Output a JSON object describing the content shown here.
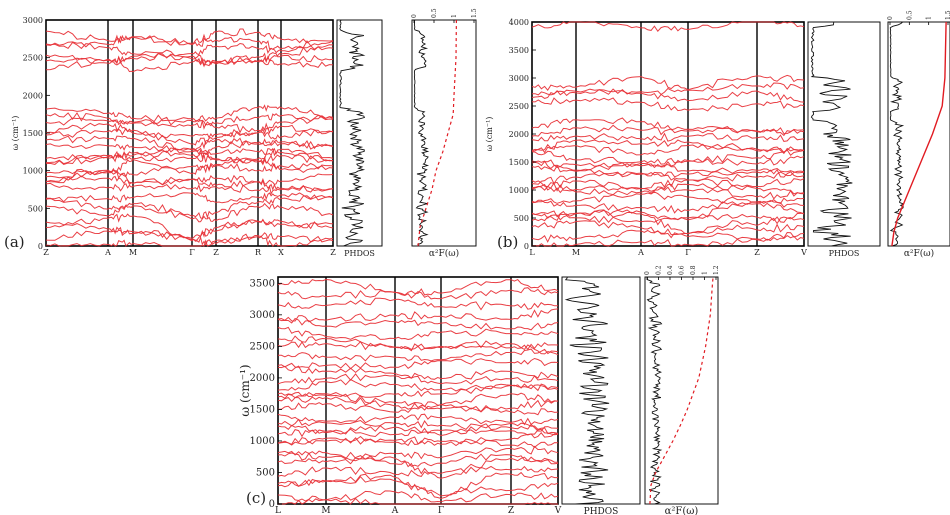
{
  "chart_data": [
    {
      "id": "a",
      "type": "line",
      "panel_label": "(a)",
      "ylabel": "ω (cm⁻¹)",
      "ylim": [
        0,
        3000
      ],
      "yticks": [
        0,
        500,
        1000,
        1500,
        2000,
        2500,
        3000
      ],
      "kpath": [
        "Z",
        "A",
        "M",
        "Γ",
        "Z",
        "R",
        "X",
        "Z"
      ],
      "band_levels": [
        60,
        150,
        250,
        330,
        450,
        560,
        650,
        760,
        830,
        910,
        1000,
        1060,
        1120,
        1180,
        1240,
        1300,
        1380,
        1450,
        1540,
        1620,
        1700,
        1760,
        2400,
        2470,
        2540,
        2620,
        2700,
        2790
      ],
      "dos_label": "PHDOS",
      "eli_label": "α²F(ω)",
      "lambda_ticks": [
        "0",
        "0.5",
        "1",
        "1.5"
      ],
      "lambda_curve": [
        [
          0,
          0.1
        ],
        [
          250,
          0.15
        ],
        [
          500,
          0.3
        ],
        [
          750,
          0.45
        ],
        [
          1000,
          0.55
        ],
        [
          1250,
          0.72
        ],
        [
          1500,
          0.85
        ],
        [
          1750,
          0.98
        ],
        [
          2000,
          1.0
        ],
        [
          2500,
          1.05
        ],
        [
          3000,
          1.06
        ]
      ],
      "lambda_style": "dashed"
    },
    {
      "id": "b",
      "type": "line",
      "panel_label": "(b)",
      "ylabel": "ω (cm⁻¹)",
      "ylim": [
        0,
        4000
      ],
      "yticks": [
        0,
        500,
        1000,
        1500,
        2000,
        2500,
        3000,
        3500,
        4000
      ],
      "kpath": [
        "L",
        "M",
        "A",
        "Γ",
        "Z",
        "V"
      ],
      "band_levels": [
        60,
        180,
        380,
        480,
        560,
        680,
        760,
        860,
        950,
        1050,
        1130,
        1220,
        1320,
        1420,
        1520,
        1620,
        1720,
        1820,
        1920,
        2040,
        2150,
        2500,
        2650,
        2800,
        2930,
        3990
      ],
      "dos_label": "PHDOS",
      "eli_label": "α²F(ω)",
      "lambda_ticks": [
        "0",
        "0.5",
        "1",
        "1.5"
      ],
      "lambda_curve": [
        [
          0,
          0.05
        ],
        [
          250,
          0.1
        ],
        [
          500,
          0.2
        ],
        [
          750,
          0.35
        ],
        [
          1000,
          0.5
        ],
        [
          1500,
          0.8
        ],
        [
          2000,
          1.1
        ],
        [
          2500,
          1.35
        ],
        [
          3000,
          1.42
        ],
        [
          4000,
          1.45
        ]
      ],
      "lambda_style": "solid"
    },
    {
      "id": "c",
      "type": "line",
      "panel_label": "(c)",
      "ylabel": "ω (cm⁻¹)",
      "ylim": [
        0,
        3600
      ],
      "yticks": [
        0,
        500,
        1000,
        1500,
        2000,
        2500,
        3000,
        3500
      ],
      "kpath": [
        "L",
        "M",
        "A",
        "Γ",
        "Z",
        "V"
      ],
      "band_levels": [
        40,
        160,
        300,
        420,
        530,
        640,
        740,
        840,
        940,
        1030,
        1120,
        1210,
        1300,
        1400,
        1500,
        1600,
        1700,
        1800,
        1900,
        2000,
        2100,
        2200,
        2330,
        2450,
        2580,
        2710,
        2860,
        3000,
        3150,
        3320,
        3460
      ],
      "dos_label": "PHDOS",
      "eli_label": "α²F(ω)",
      "lambda_ticks": [
        "0",
        "0.2",
        "0.4",
        "0.6",
        "0.8",
        "1",
        "1.2"
      ],
      "lambda_curve": [
        [
          0,
          0.05
        ],
        [
          300,
          0.07
        ],
        [
          500,
          0.15
        ],
        [
          750,
          0.3
        ],
        [
          1000,
          0.45
        ],
        [
          1250,
          0.58
        ],
        [
          1500,
          0.7
        ],
        [
          2000,
          0.9
        ],
        [
          2500,
          1.02
        ],
        [
          3000,
          1.1
        ],
        [
          3500,
          1.14
        ],
        [
          3600,
          1.15
        ]
      ],
      "lambda_style": "dashed"
    }
  ],
  "colors": {
    "band": "#e8343a",
    "lambda": "#e11b22",
    "dos": "#111111"
  }
}
